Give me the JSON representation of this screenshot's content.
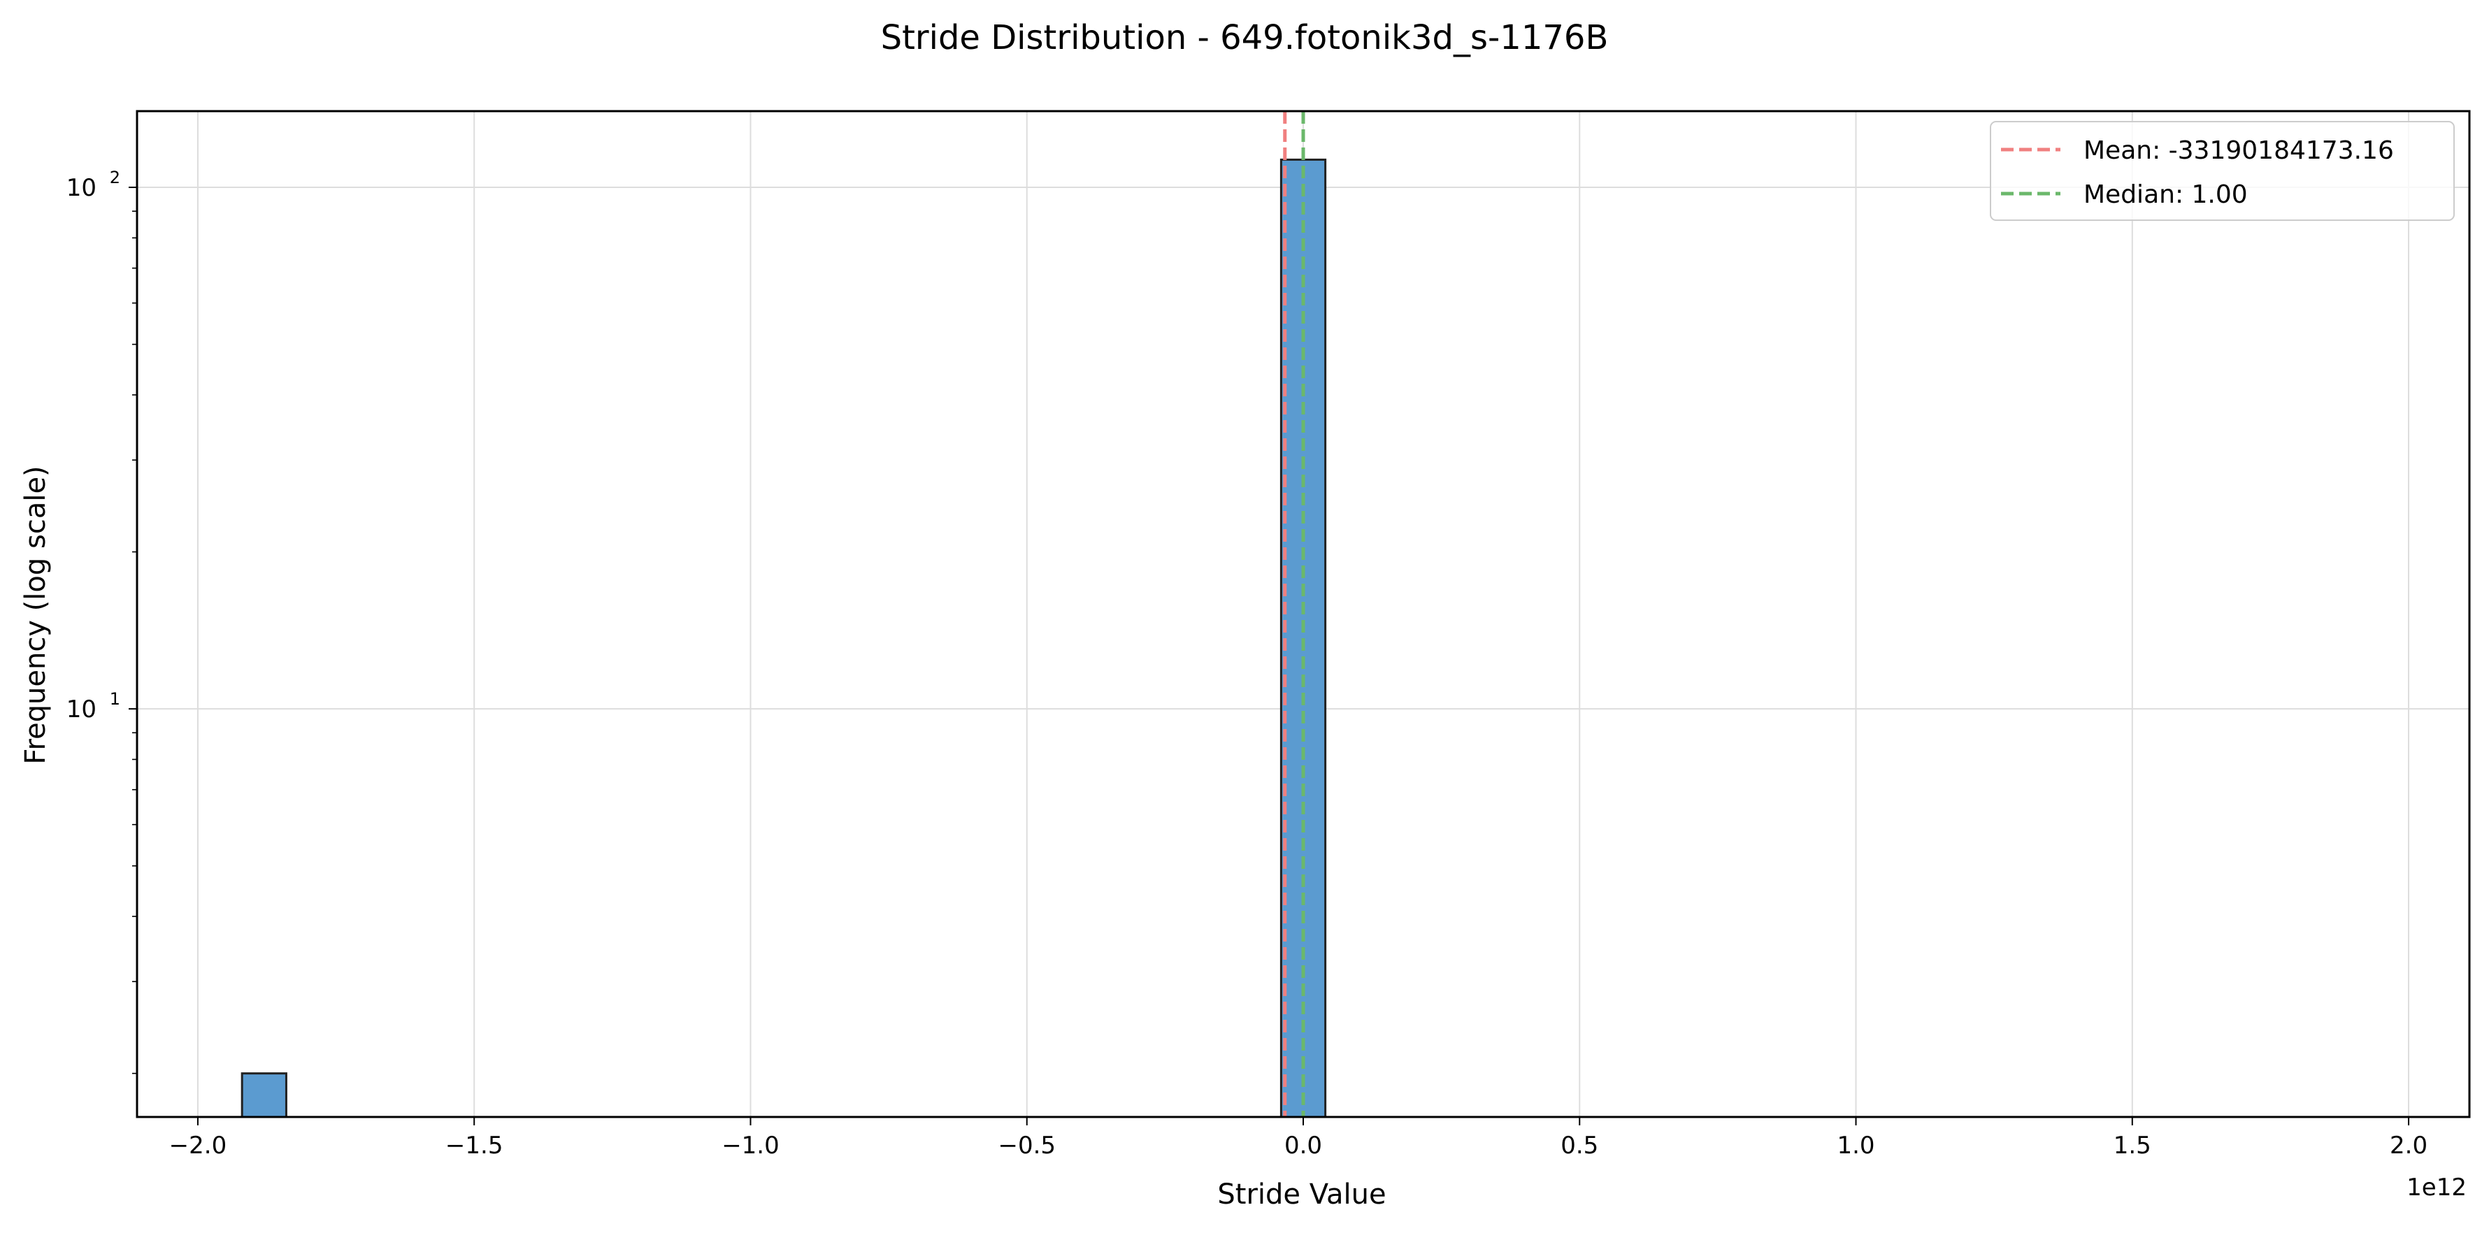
{
  "chart_data": {
    "type": "bar",
    "title": "Stride Distribution - 649.fotonik3d_s-1176B",
    "xlabel": "Stride Value",
    "ylabel": "Frequency (log scale)",
    "x_offset_label": "1e12",
    "x_scale": "linear",
    "y_scale": "log",
    "xlim": [
      -2.11,
      2.11
    ],
    "ylim": [
      1.65,
      140
    ],
    "x_ticks": [
      {
        "value": -2.0,
        "label": "−2.0"
      },
      {
        "value": -1.5,
        "label": "−1.5"
      },
      {
        "value": -1.0,
        "label": "−1.0"
      },
      {
        "value": -0.5,
        "label": "−0.5"
      },
      {
        "value": 0.0,
        "label": "0.0"
      },
      {
        "value": 0.5,
        "label": "0.5"
      },
      {
        "value": 1.0,
        "label": "1.0"
      },
      {
        "value": 1.5,
        "label": "1.5"
      },
      {
        "value": 2.0,
        "label": "2.0"
      }
    ],
    "y_ticks": [
      {
        "value": 10,
        "base": "10",
        "exp": "1"
      },
      {
        "value": 100,
        "base": "10",
        "exp": "2"
      }
    ],
    "grid": true,
    "legend_position": "top-right",
    "bars": [
      {
        "x0": -1.92,
        "x1": -1.84,
        "count": 2
      },
      {
        "x0": -0.04,
        "x1": 0.04,
        "count": 113
      }
    ],
    "reference_lines": [
      {
        "label": "Mean: -33190184173.16",
        "x": -0.0332,
        "color": "#f08080"
      },
      {
        "label": "Median: 1.00",
        "x": 0.0,
        "color": "#6bb86b"
      }
    ],
    "bar_color": "#5b9bd0",
    "bar_edge_color": "#222222"
  }
}
